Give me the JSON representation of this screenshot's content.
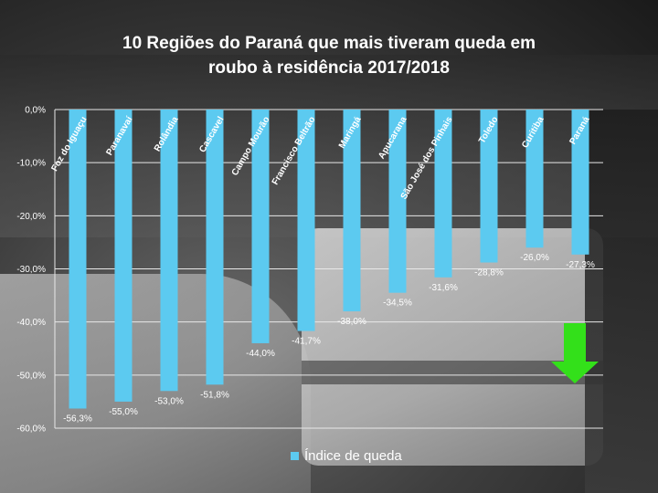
{
  "chart_data": {
    "type": "bar",
    "title_lines": [
      "10 Regiões do Paraná que mais tiveram queda em",
      "roubo à residência 2017/2018"
    ],
    "categories": [
      "Foz do Iguaçu",
      "Paranavaí",
      "Rolândia",
      "Cascavel",
      "Campo Mourão",
      "Francisco Beltrão",
      "Maringá",
      "Apucarana",
      "São José dos Pinhais",
      "Toledo",
      "Curitiba",
      "Paraná"
    ],
    "series": [
      {
        "name": "Índice de queda",
        "values": [
          -56.3,
          -55.0,
          -53.0,
          -51.8,
          -44.0,
          -41.7,
          -38.0,
          -34.5,
          -31.6,
          -28.8,
          -26.0,
          -27.3
        ],
        "value_labels": [
          "-56,3%",
          "-55,0%",
          "-53,0%",
          "-51,8%",
          "-44,0%",
          "-41,7%",
          "-38,0%",
          "-34,5%",
          "-31,6%",
          "-28,8%",
          "-26,0%",
          "-27,3%"
        ],
        "color": "#5ccaf0"
      }
    ],
    "y_ticks": [
      0,
      -10,
      -20,
      -30,
      -40,
      -50,
      -60
    ],
    "y_tick_labels": [
      "0,0%",
      "-10,0%",
      "-20,0%",
      "-30,0%",
      "-40,0%",
      "-50,0%",
      "-60,0%"
    ],
    "ylim": [
      -60,
      0
    ],
    "grid": true,
    "legend_position": "bottom",
    "annotation": "green-down-arrow"
  },
  "colors": {
    "bar": "#5ccaf0",
    "arrow": "#33e01a",
    "text": "#ffffff",
    "grid": "#e8e8e8"
  }
}
